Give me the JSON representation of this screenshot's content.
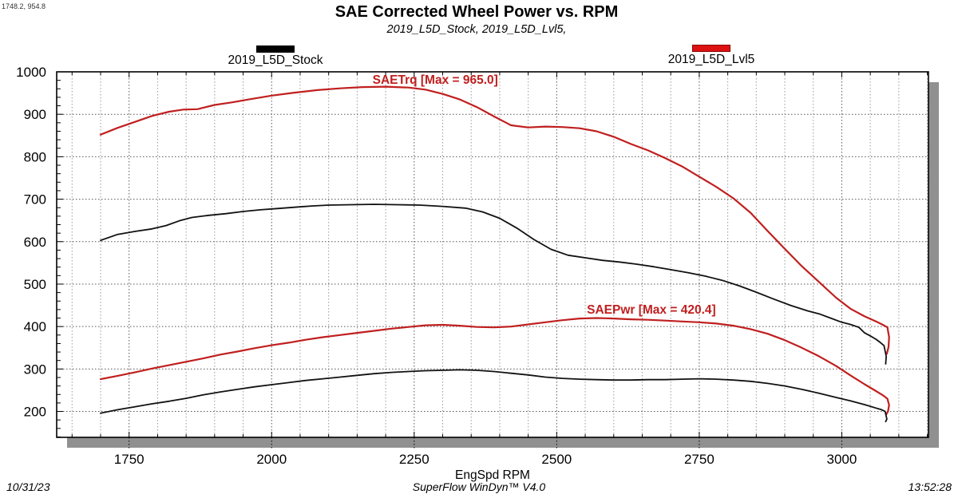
{
  "readout": "1748.2, 954.8",
  "header": {
    "title": "SAE Corrected Wheel Power vs. RPM",
    "subtitle": "2019_L5D_Stock, 2019_L5D_Lvl5,"
  },
  "legend": [
    {
      "label": "2019_L5D_Stock",
      "color": "#000000"
    },
    {
      "label": "2019_L5D_Lvl5",
      "color": "#dd1111"
    }
  ],
  "footer": {
    "date": "10/31/23",
    "software": "SuperFlow WinDyn™ V4.0",
    "time": "13:52:28"
  },
  "colors": {
    "stock": "#111111",
    "lvl5": "#c01f1f",
    "grid_major": "#555555",
    "grid_minor": "#9a9a9a",
    "shadow": "#909090",
    "annotation": "#c01f1f"
  },
  "chart_data": {
    "type": "line",
    "title": "SAE Corrected Wheel Power vs. RPM",
    "xlabel": "EngSpd RPM",
    "ylabel": "",
    "xlim": [
      1623,
      3152
    ],
    "ylim": [
      139,
      1000
    ],
    "x_major_ticks": [
      1750,
      2000,
      2250,
      2500,
      2750,
      3000
    ],
    "y_major_ticks": [
      200,
      300,
      400,
      500,
      600,
      700,
      800,
      900,
      1000
    ],
    "x_minor_step": 50,
    "y_minor_step": 20,
    "grid": true,
    "legend_position": "top",
    "annotations": [
      {
        "text": "SAETrq [Max = 965.0]",
        "x": 2287,
        "y": 981
      },
      {
        "text": "SAEPwr [Max = 420.4]",
        "x": 2666,
        "y": 440
      }
    ],
    "series": [
      {
        "name": "2019_L5D_Lvl5 SAETrq",
        "channel": "SAETrq",
        "run": "2019_L5D_Lvl5",
        "max": 965.0,
        "color": "#c01f1f",
        "width": 2.2,
        "points": [
          [
            1700,
            852
          ],
          [
            1730,
            868
          ],
          [
            1760,
            882
          ],
          [
            1790,
            896
          ],
          [
            1820,
            906
          ],
          [
            1845,
            911
          ],
          [
            1870,
            912
          ],
          [
            1900,
            922
          ],
          [
            1930,
            928
          ],
          [
            1960,
            935
          ],
          [
            2000,
            944
          ],
          [
            2040,
            951
          ],
          [
            2080,
            957
          ],
          [
            2120,
            961
          ],
          [
            2160,
            964
          ],
          [
            2200,
            965
          ],
          [
            2240,
            963
          ],
          [
            2270,
            958
          ],
          [
            2300,
            948
          ],
          [
            2330,
            935
          ],
          [
            2360,
            917
          ],
          [
            2390,
            895
          ],
          [
            2420,
            874
          ],
          [
            2450,
            869
          ],
          [
            2480,
            871
          ],
          [
            2510,
            870
          ],
          [
            2540,
            867
          ],
          [
            2570,
            860
          ],
          [
            2600,
            847
          ],
          [
            2630,
            830
          ],
          [
            2660,
            815
          ],
          [
            2690,
            797
          ],
          [
            2720,
            777
          ],
          [
            2750,
            753
          ],
          [
            2780,
            729
          ],
          [
            2810,
            702
          ],
          [
            2840,
            668
          ],
          [
            2870,
            625
          ],
          [
            2900,
            583
          ],
          [
            2930,
            542
          ],
          [
            2960,
            505
          ],
          [
            2990,
            468
          ],
          [
            3015,
            442
          ],
          [
            3040,
            424
          ],
          [
            3060,
            412
          ],
          [
            3072,
            404
          ],
          [
            3080,
            398
          ],
          [
            3083,
            375
          ],
          [
            3082,
            352
          ],
          [
            3079,
            336
          ]
        ]
      },
      {
        "name": "2019_L5D_Stock SAETrq",
        "channel": "SAETrq",
        "run": "2019_L5D_Stock",
        "color": "#111111",
        "width": 1.8,
        "points": [
          [
            1700,
            603
          ],
          [
            1730,
            617
          ],
          [
            1760,
            624
          ],
          [
            1790,
            630
          ],
          [
            1815,
            638
          ],
          [
            1840,
            650
          ],
          [
            1860,
            657
          ],
          [
            1890,
            662
          ],
          [
            1920,
            666
          ],
          [
            1950,
            671
          ],
          [
            1980,
            675
          ],
          [
            2010,
            678
          ],
          [
            2040,
            681
          ],
          [
            2070,
            684
          ],
          [
            2100,
            686
          ],
          [
            2140,
            687
          ],
          [
            2180,
            688
          ],
          [
            2220,
            687
          ],
          [
            2260,
            686
          ],
          [
            2300,
            683
          ],
          [
            2340,
            679
          ],
          [
            2370,
            670
          ],
          [
            2400,
            655
          ],
          [
            2430,
            632
          ],
          [
            2460,
            605
          ],
          [
            2490,
            582
          ],
          [
            2520,
            568
          ],
          [
            2550,
            562
          ],
          [
            2580,
            556
          ],
          [
            2610,
            552
          ],
          [
            2640,
            547
          ],
          [
            2670,
            541
          ],
          [
            2700,
            534
          ],
          [
            2730,
            527
          ],
          [
            2760,
            519
          ],
          [
            2790,
            509
          ],
          [
            2820,
            496
          ],
          [
            2850,
            481
          ],
          [
            2880,
            465
          ],
          [
            2910,
            450
          ],
          [
            2940,
            437
          ],
          [
            2960,
            430
          ],
          [
            2980,
            420
          ],
          [
            3000,
            410
          ],
          [
            3015,
            405
          ],
          [
            3030,
            398
          ],
          [
            3040,
            385
          ],
          [
            3050,
            378
          ],
          [
            3060,
            370
          ],
          [
            3068,
            362
          ],
          [
            3074,
            355
          ],
          [
            3078,
            330
          ],
          [
            3077,
            312
          ]
        ]
      },
      {
        "name": "2019_L5D_Lvl5 SAEPwr",
        "channel": "SAEPwr",
        "run": "2019_L5D_Lvl5",
        "max": 420.4,
        "color": "#c01f1f",
        "width": 2.2,
        "points": [
          [
            1700,
            276
          ],
          [
            1730,
            284
          ],
          [
            1760,
            292
          ],
          [
            1790,
            301
          ],
          [
            1820,
            309
          ],
          [
            1850,
            317
          ],
          [
            1880,
            325
          ],
          [
            1910,
            334
          ],
          [
            1940,
            341
          ],
          [
            1970,
            349
          ],
          [
            2000,
            356
          ],
          [
            2030,
            362
          ],
          [
            2060,
            369
          ],
          [
            2090,
            375
          ],
          [
            2120,
            380
          ],
          [
            2150,
            385
          ],
          [
            2180,
            390
          ],
          [
            2210,
            395
          ],
          [
            2240,
            399
          ],
          [
            2270,
            403
          ],
          [
            2300,
            404
          ],
          [
            2330,
            402
          ],
          [
            2360,
            399
          ],
          [
            2390,
            398
          ],
          [
            2420,
            400
          ],
          [
            2450,
            405
          ],
          [
            2480,
            410
          ],
          [
            2510,
            415
          ],
          [
            2540,
            419
          ],
          [
            2570,
            420
          ],
          [
            2600,
            419
          ],
          [
            2630,
            417
          ],
          [
            2660,
            416
          ],
          [
            2690,
            414
          ],
          [
            2720,
            412
          ],
          [
            2750,
            410
          ],
          [
            2780,
            407
          ],
          [
            2810,
            402
          ],
          [
            2840,
            394
          ],
          [
            2870,
            383
          ],
          [
            2900,
            368
          ],
          [
            2930,
            350
          ],
          [
            2960,
            330
          ],
          [
            2990,
            307
          ],
          [
            3015,
            285
          ],
          [
            3040,
            264
          ],
          [
            3060,
            248
          ],
          [
            3072,
            238
          ],
          [
            3080,
            230
          ],
          [
            3083,
            215
          ],
          [
            3081,
            200
          ],
          [
            3078,
            193
          ]
        ]
      },
      {
        "name": "2019_L5D_Stock SAEPwr",
        "channel": "SAEPwr",
        "run": "2019_L5D_Stock",
        "color": "#111111",
        "width": 1.8,
        "points": [
          [
            1700,
            196
          ],
          [
            1730,
            204
          ],
          [
            1760,
            211
          ],
          [
            1790,
            218
          ],
          [
            1820,
            224
          ],
          [
            1850,
            231
          ],
          [
            1880,
            239
          ],
          [
            1910,
            246
          ],
          [
            1940,
            252
          ],
          [
            1970,
            258
          ],
          [
            2000,
            263
          ],
          [
            2030,
            268
          ],
          [
            2060,
            273
          ],
          [
            2090,
            277
          ],
          [
            2120,
            281
          ],
          [
            2150,
            285
          ],
          [
            2180,
            289
          ],
          [
            2210,
            292
          ],
          [
            2240,
            294
          ],
          [
            2270,
            296
          ],
          [
            2300,
            297
          ],
          [
            2330,
            298
          ],
          [
            2360,
            297
          ],
          [
            2390,
            294
          ],
          [
            2420,
            290
          ],
          [
            2450,
            286
          ],
          [
            2480,
            281
          ],
          [
            2510,
            278
          ],
          [
            2540,
            276
          ],
          [
            2570,
            275
          ],
          [
            2600,
            274
          ],
          [
            2630,
            274
          ],
          [
            2660,
            275
          ],
          [
            2690,
            275
          ],
          [
            2720,
            276
          ],
          [
            2750,
            277
          ],
          [
            2780,
            276
          ],
          [
            2810,
            274
          ],
          [
            2840,
            271
          ],
          [
            2870,
            266
          ],
          [
            2900,
            260
          ],
          [
            2930,
            252
          ],
          [
            2960,
            243
          ],
          [
            2990,
            233
          ],
          [
            3015,
            225
          ],
          [
            3040,
            216
          ],
          [
            3060,
            208
          ],
          [
            3070,
            204
          ],
          [
            3076,
            200
          ],
          [
            3079,
            182
          ],
          [
            3077,
            176
          ]
        ]
      }
    ]
  }
}
